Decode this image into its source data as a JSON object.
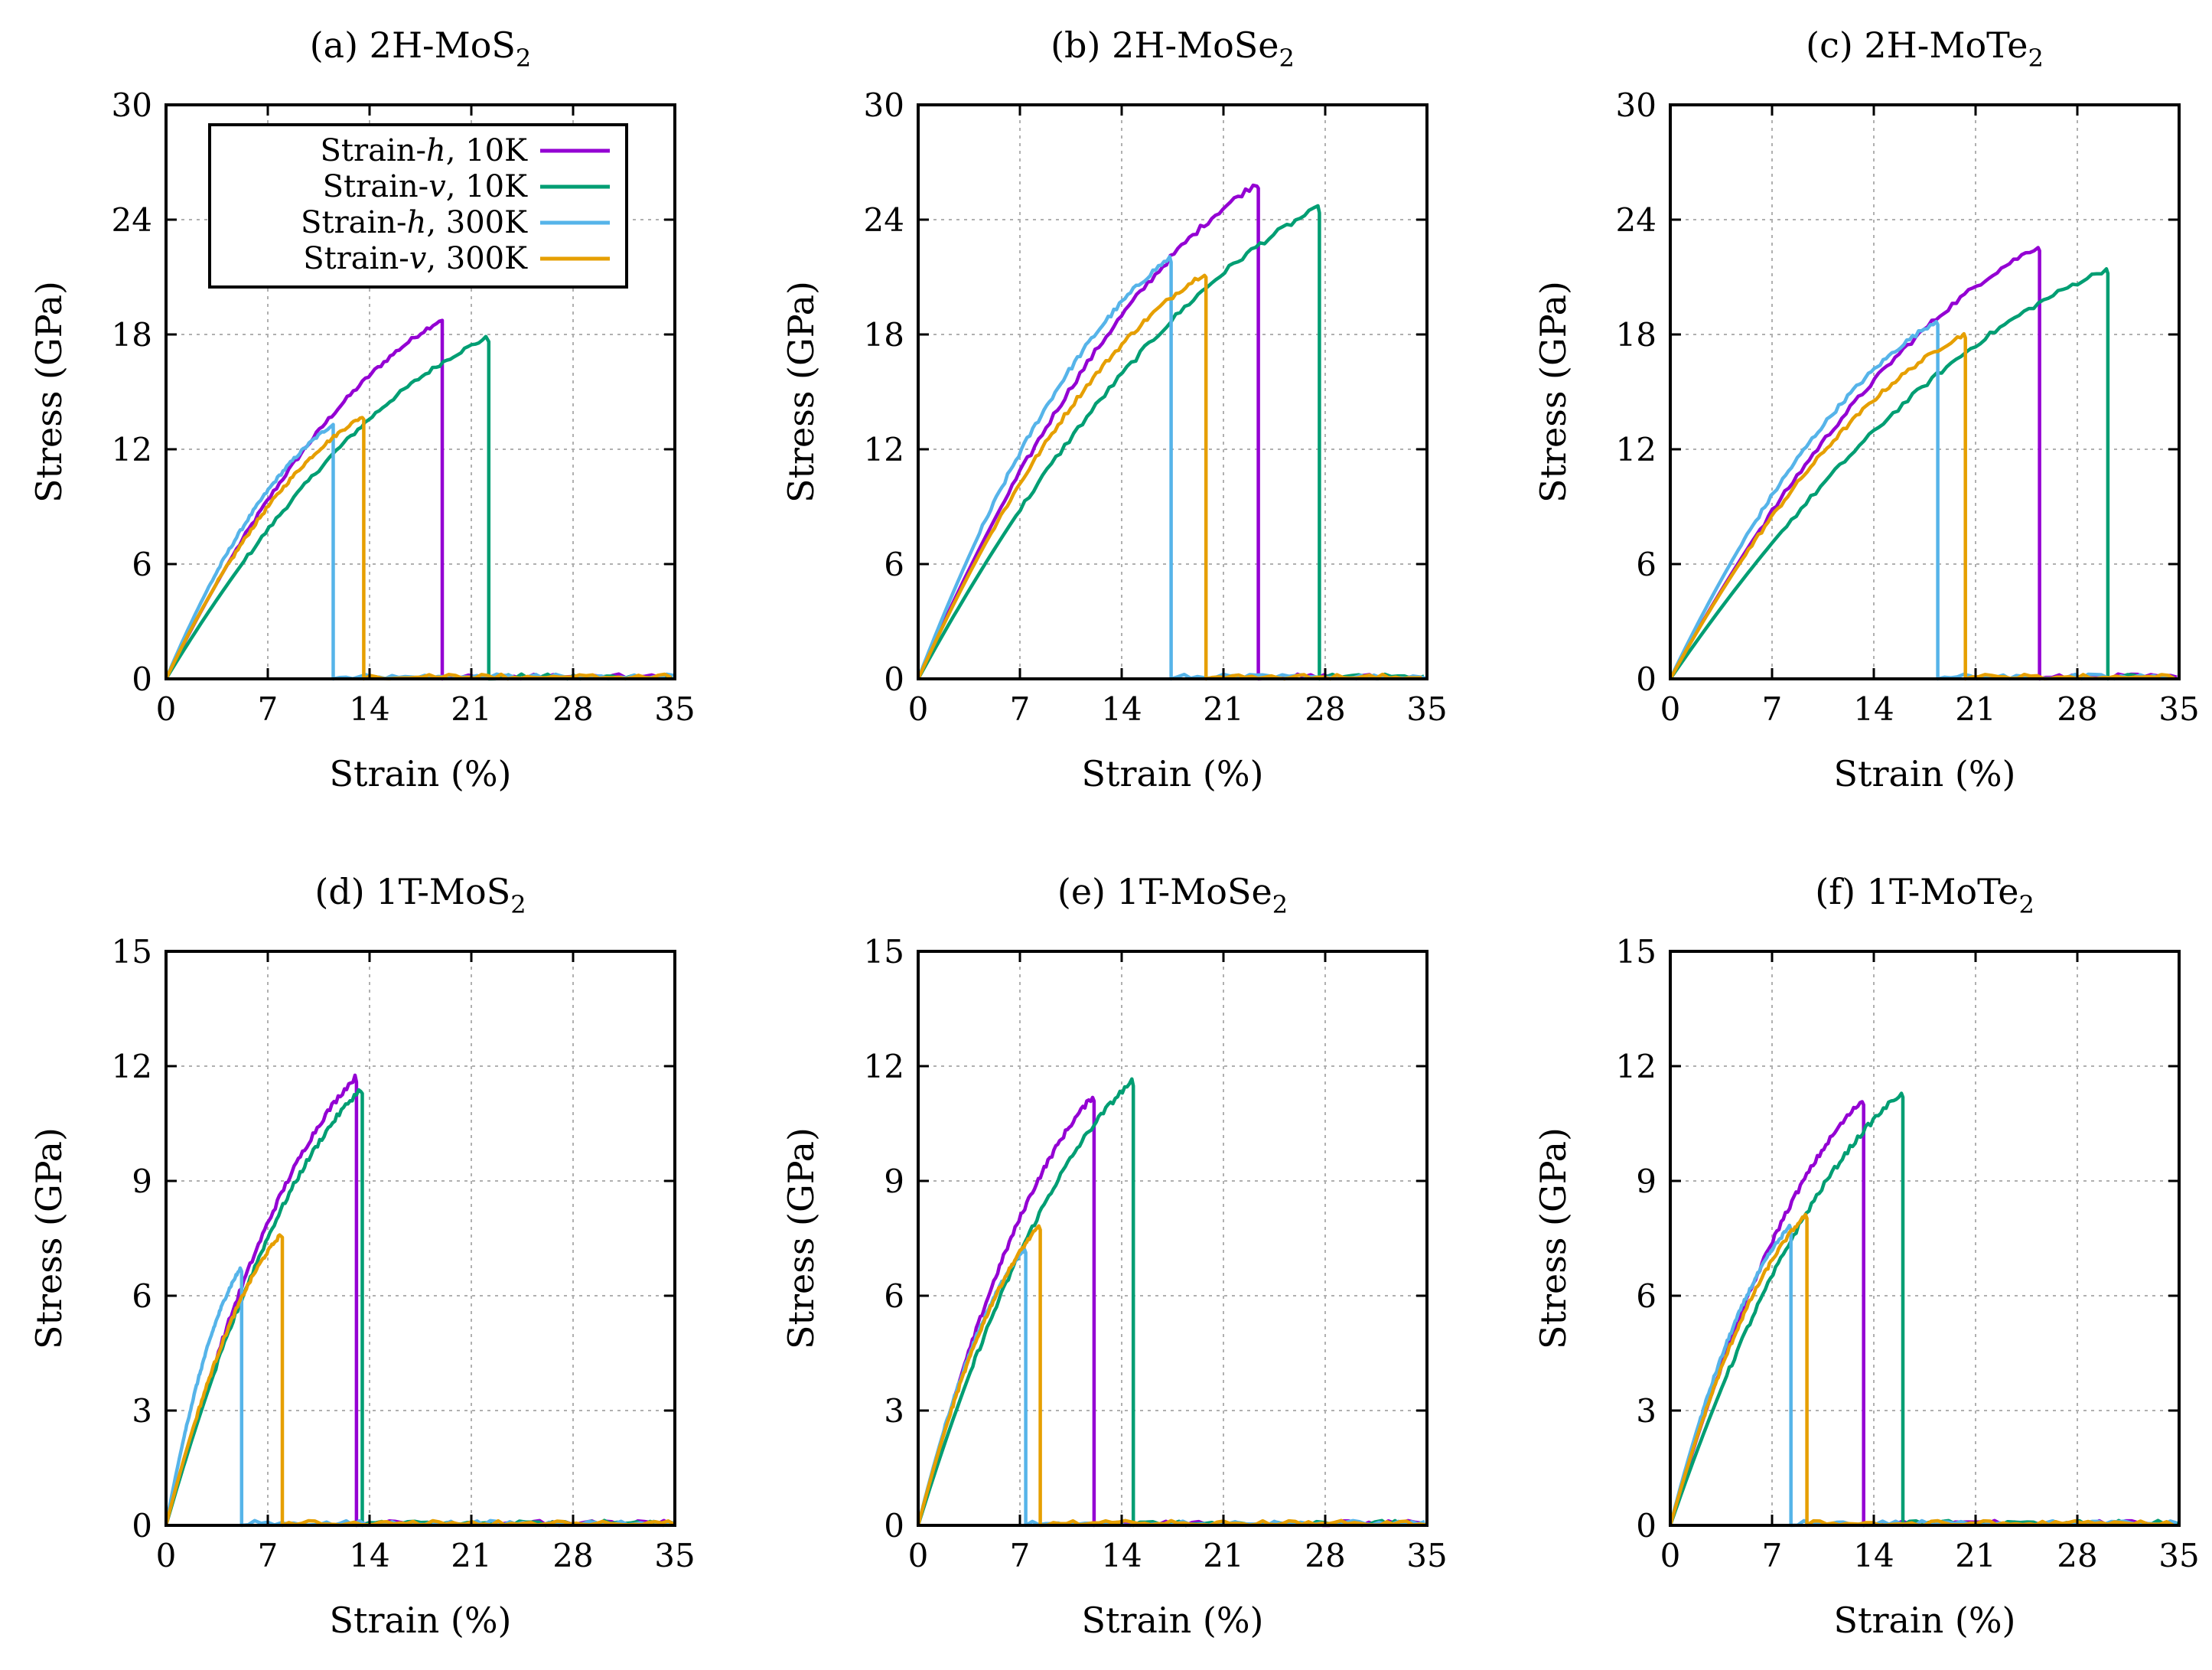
{
  "legend": [
    {
      "name": "Strain-h, 10K",
      "prefix": "Strain-",
      "var": "h",
      "suffix": ", 10K",
      "color": "#9400d3"
    },
    {
      "name": "Strain-v, 10K",
      "prefix": "Strain-",
      "var": "v",
      "suffix": ", 10K",
      "color": "#009e73"
    },
    {
      "name": "Strain-h, 300K",
      "prefix": "Strain-",
      "var": "h",
      "suffix": ", 300K",
      "color": "#56b4e9"
    },
    {
      "name": "Strain-v, 300K",
      "prefix": "Strain-",
      "var": "v",
      "suffix": ", 300K",
      "color": "#e69f00"
    }
  ],
  "chart_data": [
    {
      "type": "line",
      "panel": "a",
      "title": "(a) 2H-MoS2",
      "title_base": "(a) 2H-MoS",
      "title_sub": "2",
      "xlabel": "Strain (%)",
      "ylabel": "Stress (GPa)",
      "xlim": [
        0,
        35
      ],
      "ylim": [
        0,
        30
      ],
      "xticks": [
        0,
        7,
        14,
        21,
        28,
        35
      ],
      "yticks": [
        0,
        6,
        12,
        18,
        24,
        30
      ],
      "grid": true,
      "legend_position": "top-left",
      "series": [
        {
          "name": "Strain-h, 10K",
          "peak_strain": 19.0,
          "peak_stress": 18.8,
          "fracture_strain": 19.0,
          "color": "#9400d3"
        },
        {
          "name": "Strain-v, 10K",
          "peak_strain": 22.0,
          "peak_stress": 17.8,
          "fracture_strain": 22.2,
          "color": "#009e73"
        },
        {
          "name": "Strain-h, 300K",
          "peak_strain": 11.5,
          "peak_stress": 13.3,
          "fracture_strain": 11.5,
          "color": "#56b4e9"
        },
        {
          "name": "Strain-v, 300K",
          "peak_strain": 13.5,
          "peak_stress": 13.7,
          "fracture_strain": 13.6,
          "color": "#e69f00"
        }
      ]
    },
    {
      "type": "line",
      "panel": "b",
      "title": "(b) 2H-MoSe2",
      "title_base": "(b) 2H-MoSe",
      "title_sub": "2",
      "xlabel": "Strain (%)",
      "ylabel": "Stress (GPa)",
      "xlim": [
        0,
        35
      ],
      "ylim": [
        0,
        30
      ],
      "xticks": [
        0,
        7,
        14,
        21,
        28,
        35
      ],
      "yticks": [
        0,
        6,
        12,
        18,
        24,
        30
      ],
      "grid": true,
      "series": [
        {
          "name": "Strain-h, 10K",
          "peak_strain": 23.3,
          "peak_stress": 25.9,
          "fracture_strain": 23.4,
          "color": "#9400d3"
        },
        {
          "name": "Strain-v, 10K",
          "peak_strain": 27.5,
          "peak_stress": 24.6,
          "fracture_strain": 27.6,
          "color": "#009e73"
        },
        {
          "name": "Strain-h, 300K",
          "peak_strain": 17.3,
          "peak_stress": 22.0,
          "fracture_strain": 17.4,
          "color": "#56b4e9"
        },
        {
          "name": "Strain-v, 300K",
          "peak_strain": 19.7,
          "peak_stress": 21.2,
          "fracture_strain": 19.8,
          "color": "#e69f00"
        }
      ]
    },
    {
      "type": "line",
      "panel": "c",
      "title": "(c) 2H-MoTe2",
      "title_base": "(c) 2H-MoTe",
      "title_sub": "2",
      "xlabel": "Strain (%)",
      "ylabel": "Stress (GPa)",
      "xlim": [
        0,
        35
      ],
      "ylim": [
        0,
        30
      ],
      "xticks": [
        0,
        7,
        14,
        21,
        28,
        35
      ],
      "yticks": [
        0,
        6,
        12,
        18,
        24,
        30
      ],
      "grid": true,
      "series": [
        {
          "name": "Strain-h, 10K",
          "peak_strain": 25.3,
          "peak_stress": 22.6,
          "fracture_strain": 25.4,
          "color": "#9400d3"
        },
        {
          "name": "Strain-v, 10K",
          "peak_strain": 30.0,
          "peak_stress": 21.4,
          "fracture_strain": 30.1,
          "color": "#009e73"
        },
        {
          "name": "Strain-h, 300K",
          "peak_strain": 18.3,
          "peak_stress": 18.7,
          "fracture_strain": 18.4,
          "color": "#56b4e9"
        },
        {
          "name": "Strain-v, 300K",
          "peak_strain": 20.2,
          "peak_stress": 18.0,
          "fracture_strain": 20.3,
          "color": "#e69f00"
        }
      ]
    },
    {
      "type": "line",
      "panel": "d",
      "title": "(d) 1T-MoS2",
      "title_base": "(d) 1T-MoS",
      "title_sub": "2",
      "xlabel": "Strain (%)",
      "ylabel": "Stress (GPa)",
      "xlim": [
        0,
        35
      ],
      "ylim": [
        0,
        15
      ],
      "xticks": [
        0,
        7,
        14,
        21,
        28,
        35
      ],
      "yticks": [
        0,
        3,
        6,
        9,
        12,
        15
      ],
      "grid": true,
      "series": [
        {
          "name": "Strain-h, 10K",
          "peak_strain": 13.0,
          "peak_stress": 11.7,
          "fracture_strain": 13.1,
          "color": "#9400d3"
        },
        {
          "name": "Strain-v, 10K",
          "peak_strain": 13.4,
          "peak_stress": 11.4,
          "fracture_strain": 13.5,
          "color": "#009e73"
        },
        {
          "name": "Strain-h, 300K",
          "peak_strain": 5.1,
          "peak_stress": 6.7,
          "fracture_strain": 5.2,
          "color": "#56b4e9"
        },
        {
          "name": "Strain-v, 300K",
          "peak_strain": 7.9,
          "peak_stress": 7.6,
          "fracture_strain": 8.0,
          "color": "#e69f00"
        }
      ]
    },
    {
      "type": "line",
      "panel": "e",
      "title": "(e) 1T-MoSe2",
      "title_base": "(e) 1T-MoSe",
      "title_sub": "2",
      "xlabel": "Strain (%)",
      "ylabel": "Stress (GPa)",
      "xlim": [
        0,
        35
      ],
      "ylim": [
        0,
        15
      ],
      "xticks": [
        0,
        7,
        14,
        21,
        28,
        35
      ],
      "yticks": [
        0,
        3,
        6,
        9,
        12,
        15
      ],
      "grid": true,
      "series": [
        {
          "name": "Strain-h, 10K",
          "peak_strain": 12.0,
          "peak_stress": 11.2,
          "fracture_strain": 12.1,
          "color": "#9400d3"
        },
        {
          "name": "Strain-v, 10K",
          "peak_strain": 14.7,
          "peak_stress": 11.6,
          "fracture_strain": 14.8,
          "color": "#009e73"
        },
        {
          "name": "Strain-h, 300K",
          "peak_strain": 7.3,
          "peak_stress": 7.2,
          "fracture_strain": 7.4,
          "color": "#56b4e9"
        },
        {
          "name": "Strain-v, 300K",
          "peak_strain": 8.3,
          "peak_stress": 7.8,
          "fracture_strain": 8.4,
          "color": "#e69f00"
        }
      ]
    },
    {
      "type": "line",
      "panel": "f",
      "title": "(f) 1T-MoTe2",
      "title_base": "(f) 1T-MoTe",
      "title_sub": "2",
      "xlabel": "Strain (%)",
      "ylabel": "Stress (GPa)",
      "xlim": [
        0,
        35
      ],
      "ylim": [
        0,
        15
      ],
      "xticks": [
        0,
        7,
        14,
        21,
        28,
        35
      ],
      "yticks": [
        0,
        3,
        6,
        9,
        12,
        15
      ],
      "grid": true,
      "series": [
        {
          "name": "Strain-h, 10K",
          "peak_strain": 13.2,
          "peak_stress": 11.1,
          "fracture_strain": 13.3,
          "color": "#9400d3"
        },
        {
          "name": "Strain-v, 10K",
          "peak_strain": 15.9,
          "peak_stress": 11.3,
          "fracture_strain": 16.0,
          "color": "#009e73"
        },
        {
          "name": "Strain-h, 300K",
          "peak_strain": 8.2,
          "peak_stress": 7.8,
          "fracture_strain": 8.3,
          "color": "#56b4e9"
        },
        {
          "name": "Strain-v, 300K",
          "peak_strain": 9.3,
          "peak_stress": 8.1,
          "fracture_strain": 9.4,
          "color": "#e69f00"
        }
      ]
    }
  ]
}
